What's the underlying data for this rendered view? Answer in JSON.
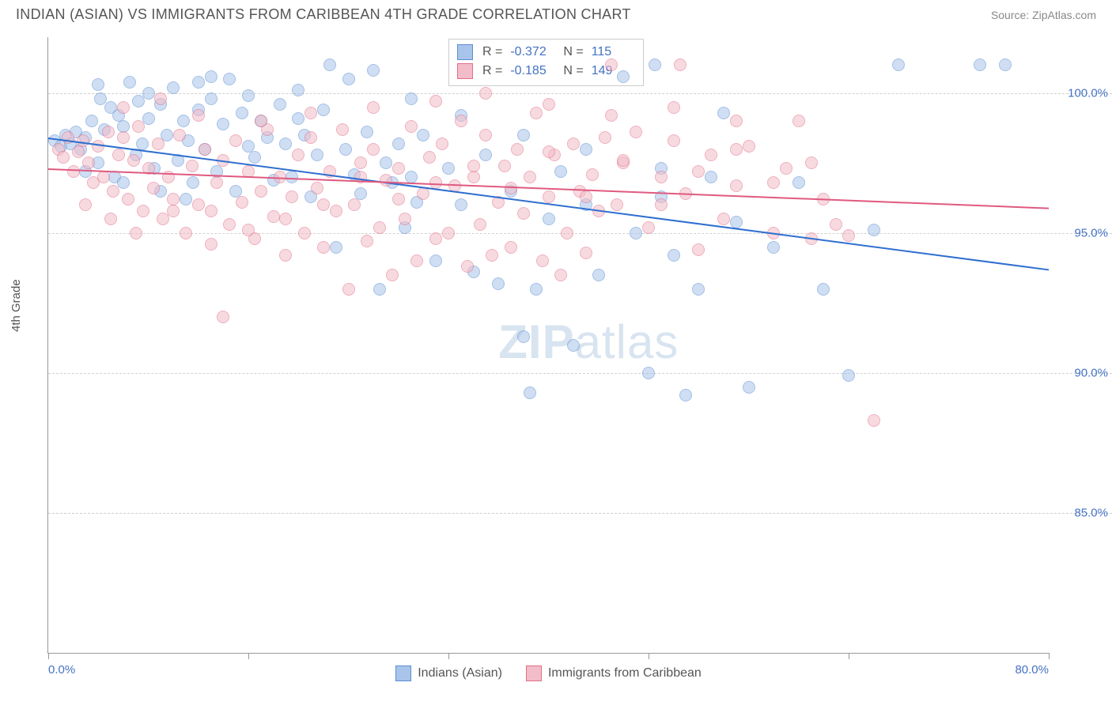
{
  "header": {
    "title": "INDIAN (ASIAN) VS IMMIGRANTS FROM CARIBBEAN 4TH GRADE CORRELATION CHART",
    "source": "Source: ZipAtlas.com"
  },
  "chart": {
    "type": "scatter",
    "ylabel": "4th Grade",
    "background_color": "#ffffff",
    "grid_color": "#d0d0d0",
    "axis_color": "#999999",
    "tick_label_color": "#4472c4",
    "xlim": [
      0,
      80
    ],
    "ylim": [
      80,
      102
    ],
    "ytick_step": 5,
    "yticks": [
      85,
      90,
      95,
      100
    ],
    "ytick_labels": [
      "85.0%",
      "90.0%",
      "95.0%",
      "100.0%"
    ],
    "xticks": [
      0,
      16,
      32,
      48,
      64,
      80
    ],
    "xtick_labels_shown": {
      "0": "0.0%",
      "80": "80.0%"
    },
    "marker_radius": 8,
    "marker_opacity": 0.55,
    "watermark": "ZIPatlas",
    "series": [
      {
        "name": "Indians (Asian)",
        "color_fill": "#a9c4eb",
        "color_stroke": "#5b8ed1",
        "R": "-0.372",
        "N": "115",
        "trend": {
          "x1": 0,
          "y1": 98.4,
          "x2": 80,
          "y2": 93.7,
          "color": "#2f6fd0",
          "width": 2
        },
        "points": [
          [
            0.5,
            98.3
          ],
          [
            1,
            98.1
          ],
          [
            1.4,
            98.5
          ],
          [
            1.8,
            98.2
          ],
          [
            2.2,
            98.6
          ],
          [
            2.6,
            98.0
          ],
          [
            3,
            98.4
          ],
          [
            3.5,
            99.0
          ],
          [
            4,
            97.5
          ],
          [
            4.2,
            99.8
          ],
          [
            4.5,
            98.7
          ],
          [
            5,
            99.5
          ],
          [
            5.3,
            97.0
          ],
          [
            5.6,
            99.2
          ],
          [
            6,
            98.8
          ],
          [
            6.5,
            100.4
          ],
          [
            7,
            97.8
          ],
          [
            7.2,
            99.7
          ],
          [
            7.5,
            98.2
          ],
          [
            8,
            99.1
          ],
          [
            8.5,
            97.3
          ],
          [
            9,
            99.6
          ],
          [
            9.5,
            98.5
          ],
          [
            10,
            100.2
          ],
          [
            10.4,
            97.6
          ],
          [
            10.8,
            99.0
          ],
          [
            11.2,
            98.3
          ],
          [
            11.6,
            96.8
          ],
          [
            12,
            99.4
          ],
          [
            12.5,
            98.0
          ],
          [
            13,
            99.8
          ],
          [
            13.5,
            97.2
          ],
          [
            14,
            98.9
          ],
          [
            14.5,
            100.5
          ],
          [
            15,
            96.5
          ],
          [
            15.5,
            99.3
          ],
          [
            16,
            98.1
          ],
          [
            16.5,
            97.7
          ],
          [
            17,
            99.0
          ],
          [
            17.5,
            98.4
          ],
          [
            18,
            96.9
          ],
          [
            18.5,
            99.6
          ],
          [
            19,
            98.2
          ],
          [
            19.5,
            97.0
          ],
          [
            20,
            99.1
          ],
          [
            20.5,
            98.5
          ],
          [
            21,
            96.3
          ],
          [
            21.5,
            97.8
          ],
          [
            22,
            99.4
          ],
          [
            22.5,
            101.0
          ],
          [
            23,
            94.5
          ],
          [
            23.8,
            98.0
          ],
          [
            24.5,
            97.1
          ],
          [
            25,
            96.4
          ],
          [
            25.5,
            98.6
          ],
          [
            26,
            100.8
          ],
          [
            26.5,
            93.0
          ],
          [
            27,
            97.5
          ],
          [
            27.5,
            96.8
          ],
          [
            28,
            98.2
          ],
          [
            28.5,
            95.2
          ],
          [
            29,
            97.0
          ],
          [
            29.5,
            96.1
          ],
          [
            30,
            98.5
          ],
          [
            31,
            94.0
          ],
          [
            32,
            97.3
          ],
          [
            33,
            96.0
          ],
          [
            34,
            93.6
          ],
          [
            35,
            97.8
          ],
          [
            36,
            93.2
          ],
          [
            37,
            96.5
          ],
          [
            38,
            91.3
          ],
          [
            39,
            93.0
          ],
          [
            40,
            95.5
          ],
          [
            41,
            97.2
          ],
          [
            42,
            91.0
          ],
          [
            43,
            96.0
          ],
          [
            38.5,
            89.3
          ],
          [
            44,
            93.5
          ],
          [
            46,
            100.6
          ],
          [
            47,
            95.0
          ],
          [
            48,
            90.0
          ],
          [
            49,
            96.3
          ],
          [
            50,
            94.2
          ],
          [
            51,
            89.2
          ],
          [
            52,
            93.0
          ],
          [
            53,
            97.0
          ],
          [
            54,
            99.3
          ],
          [
            55,
            95.4
          ],
          [
            56,
            89.5
          ],
          [
            48.5,
            101.0
          ],
          [
            58,
            94.5
          ],
          [
            60,
            96.8
          ],
          [
            62,
            93.0
          ],
          [
            64,
            89.9
          ],
          [
            66,
            95.1
          ],
          [
            68,
            101.0
          ],
          [
            74.5,
            101.0
          ],
          [
            76.5,
            101.0
          ],
          [
            4,
            100.3
          ],
          [
            8,
            100.0
          ],
          [
            12,
            100.4
          ],
          [
            16,
            99.9
          ],
          [
            20,
            100.1
          ],
          [
            24,
            100.5
          ],
          [
            29,
            99.8
          ],
          [
            33,
            99.2
          ],
          [
            38,
            98.5
          ],
          [
            43,
            98.0
          ],
          [
            49,
            97.3
          ],
          [
            3,
            97.2
          ],
          [
            6,
            96.8
          ],
          [
            9,
            96.5
          ],
          [
            11,
            96.2
          ],
          [
            13,
            100.6
          ]
        ]
      },
      {
        "name": "Immigrants from Caribbean",
        "color_fill": "#f2bcc8",
        "color_stroke": "#e16f8a",
        "R": "-0.185",
        "N": "149",
        "trend": {
          "x1": 0,
          "y1": 97.3,
          "x2": 80,
          "y2": 95.9,
          "color": "#e05a80",
          "width": 2
        },
        "points": [
          [
            0.8,
            98.0
          ],
          [
            1.2,
            97.7
          ],
          [
            1.6,
            98.4
          ],
          [
            2,
            97.2
          ],
          [
            2.4,
            97.9
          ],
          [
            2.8,
            98.3
          ],
          [
            3.2,
            97.5
          ],
          [
            3.6,
            96.8
          ],
          [
            4,
            98.1
          ],
          [
            4.4,
            97.0
          ],
          [
            4.8,
            98.6
          ],
          [
            5.2,
            96.5
          ],
          [
            5.6,
            97.8
          ],
          [
            6,
            98.4
          ],
          [
            6.4,
            96.2
          ],
          [
            6.8,
            97.6
          ],
          [
            7.2,
            98.8
          ],
          [
            7.6,
            95.8
          ],
          [
            8,
            97.3
          ],
          [
            8.4,
            96.6
          ],
          [
            8.8,
            98.2
          ],
          [
            9.2,
            95.5
          ],
          [
            9.6,
            97.0
          ],
          [
            10,
            96.2
          ],
          [
            10.5,
            98.5
          ],
          [
            11,
            95.0
          ],
          [
            11.5,
            97.4
          ],
          [
            12,
            96.0
          ],
          [
            12.5,
            98.0
          ],
          [
            13,
            94.6
          ],
          [
            13.5,
            96.8
          ],
          [
            14,
            97.6
          ],
          [
            14.5,
            95.3
          ],
          [
            15,
            98.3
          ],
          [
            15.5,
            96.1
          ],
          [
            16,
            97.2
          ],
          [
            16.5,
            94.8
          ],
          [
            17,
            96.5
          ],
          [
            17.5,
            98.7
          ],
          [
            18,
            95.6
          ],
          [
            18.5,
            97.0
          ],
          [
            19,
            94.2
          ],
          [
            19.5,
            96.3
          ],
          [
            20,
            97.8
          ],
          [
            20.5,
            95.0
          ],
          [
            21,
            98.4
          ],
          [
            21.5,
            96.6
          ],
          [
            22,
            94.5
          ],
          [
            22.5,
            97.2
          ],
          [
            23,
            95.8
          ],
          [
            23.5,
            98.7
          ],
          [
            24,
            93.0
          ],
          [
            24.5,
            96.0
          ],
          [
            25,
            97.5
          ],
          [
            25.5,
            94.7
          ],
          [
            26,
            98.0
          ],
          [
            26.5,
            95.2
          ],
          [
            27,
            96.9
          ],
          [
            27.5,
            93.5
          ],
          [
            28,
            97.3
          ],
          [
            28.5,
            95.5
          ],
          [
            29,
            98.8
          ],
          [
            29.5,
            94.0
          ],
          [
            30,
            96.4
          ],
          [
            30.5,
            97.7
          ],
          [
            31,
            94.8
          ],
          [
            31.5,
            98.2
          ],
          [
            32,
            95.0
          ],
          [
            32.5,
            96.7
          ],
          [
            33,
            99.0
          ],
          [
            33.5,
            93.8
          ],
          [
            34,
            97.0
          ],
          [
            34.5,
            95.3
          ],
          [
            35,
            98.5
          ],
          [
            35.5,
            94.2
          ],
          [
            36,
            96.1
          ],
          [
            36.5,
            97.4
          ],
          [
            37,
            94.5
          ],
          [
            37.5,
            98.0
          ],
          [
            38,
            95.7
          ],
          [
            38.5,
            97.0
          ],
          [
            39,
            99.3
          ],
          [
            39.5,
            94.0
          ],
          [
            40,
            96.3
          ],
          [
            40.5,
            97.8
          ],
          [
            41,
            93.5
          ],
          [
            41.5,
            95.0
          ],
          [
            42,
            98.2
          ],
          [
            42.5,
            96.5
          ],
          [
            43,
            94.3
          ],
          [
            43.5,
            97.1
          ],
          [
            44,
            95.8
          ],
          [
            44.5,
            98.4
          ],
          [
            45,
            101.0
          ],
          [
            45.5,
            96.0
          ],
          [
            46,
            97.5
          ],
          [
            47,
            98.6
          ],
          [
            48,
            95.2
          ],
          [
            49,
            97.0
          ],
          [
            50,
            98.3
          ],
          [
            50.5,
            101.0
          ],
          [
            51,
            96.4
          ],
          [
            52,
            94.4
          ],
          [
            53,
            97.8
          ],
          [
            54,
            95.5
          ],
          [
            55,
            96.7
          ],
          [
            56,
            98.1
          ],
          [
            58,
            95.0
          ],
          [
            59,
            97.3
          ],
          [
            60,
            99.0
          ],
          [
            61,
            94.8
          ],
          [
            62,
            96.2
          ],
          [
            63,
            95.3
          ],
          [
            64,
            94.9
          ],
          [
            66,
            88.3
          ],
          [
            14,
            92.0
          ],
          [
            6,
            99.5
          ],
          [
            9,
            99.8
          ],
          [
            12,
            99.2
          ],
          [
            17,
            99.0
          ],
          [
            21,
            99.3
          ],
          [
            26,
            99.5
          ],
          [
            31,
            99.7
          ],
          [
            35,
            100.0
          ],
          [
            40,
            99.6
          ],
          [
            45,
            99.2
          ],
          [
            50,
            99.5
          ],
          [
            55,
            99.0
          ],
          [
            13,
            95.8
          ],
          [
            16,
            95.1
          ],
          [
            19,
            95.5
          ],
          [
            22,
            96.0
          ],
          [
            25,
            97.0
          ],
          [
            28,
            96.2
          ],
          [
            31,
            96.8
          ],
          [
            34,
            97.4
          ],
          [
            37,
            96.6
          ],
          [
            40,
            97.9
          ],
          [
            43,
            96.3
          ],
          [
            46,
            97.6
          ],
          [
            49,
            96.0
          ],
          [
            52,
            97.2
          ],
          [
            55,
            98.0
          ],
          [
            58,
            96.8
          ],
          [
            61,
            97.5
          ],
          [
            3,
            96.0
          ],
          [
            5,
            95.5
          ],
          [
            7,
            95.0
          ],
          [
            10,
            95.8
          ]
        ]
      }
    ],
    "stats_box": {
      "labels": {
        "R": "R =",
        "N": "N ="
      }
    },
    "bottom_legend": [
      "Indians (Asian)",
      "Immigrants from Caribbean"
    ]
  }
}
